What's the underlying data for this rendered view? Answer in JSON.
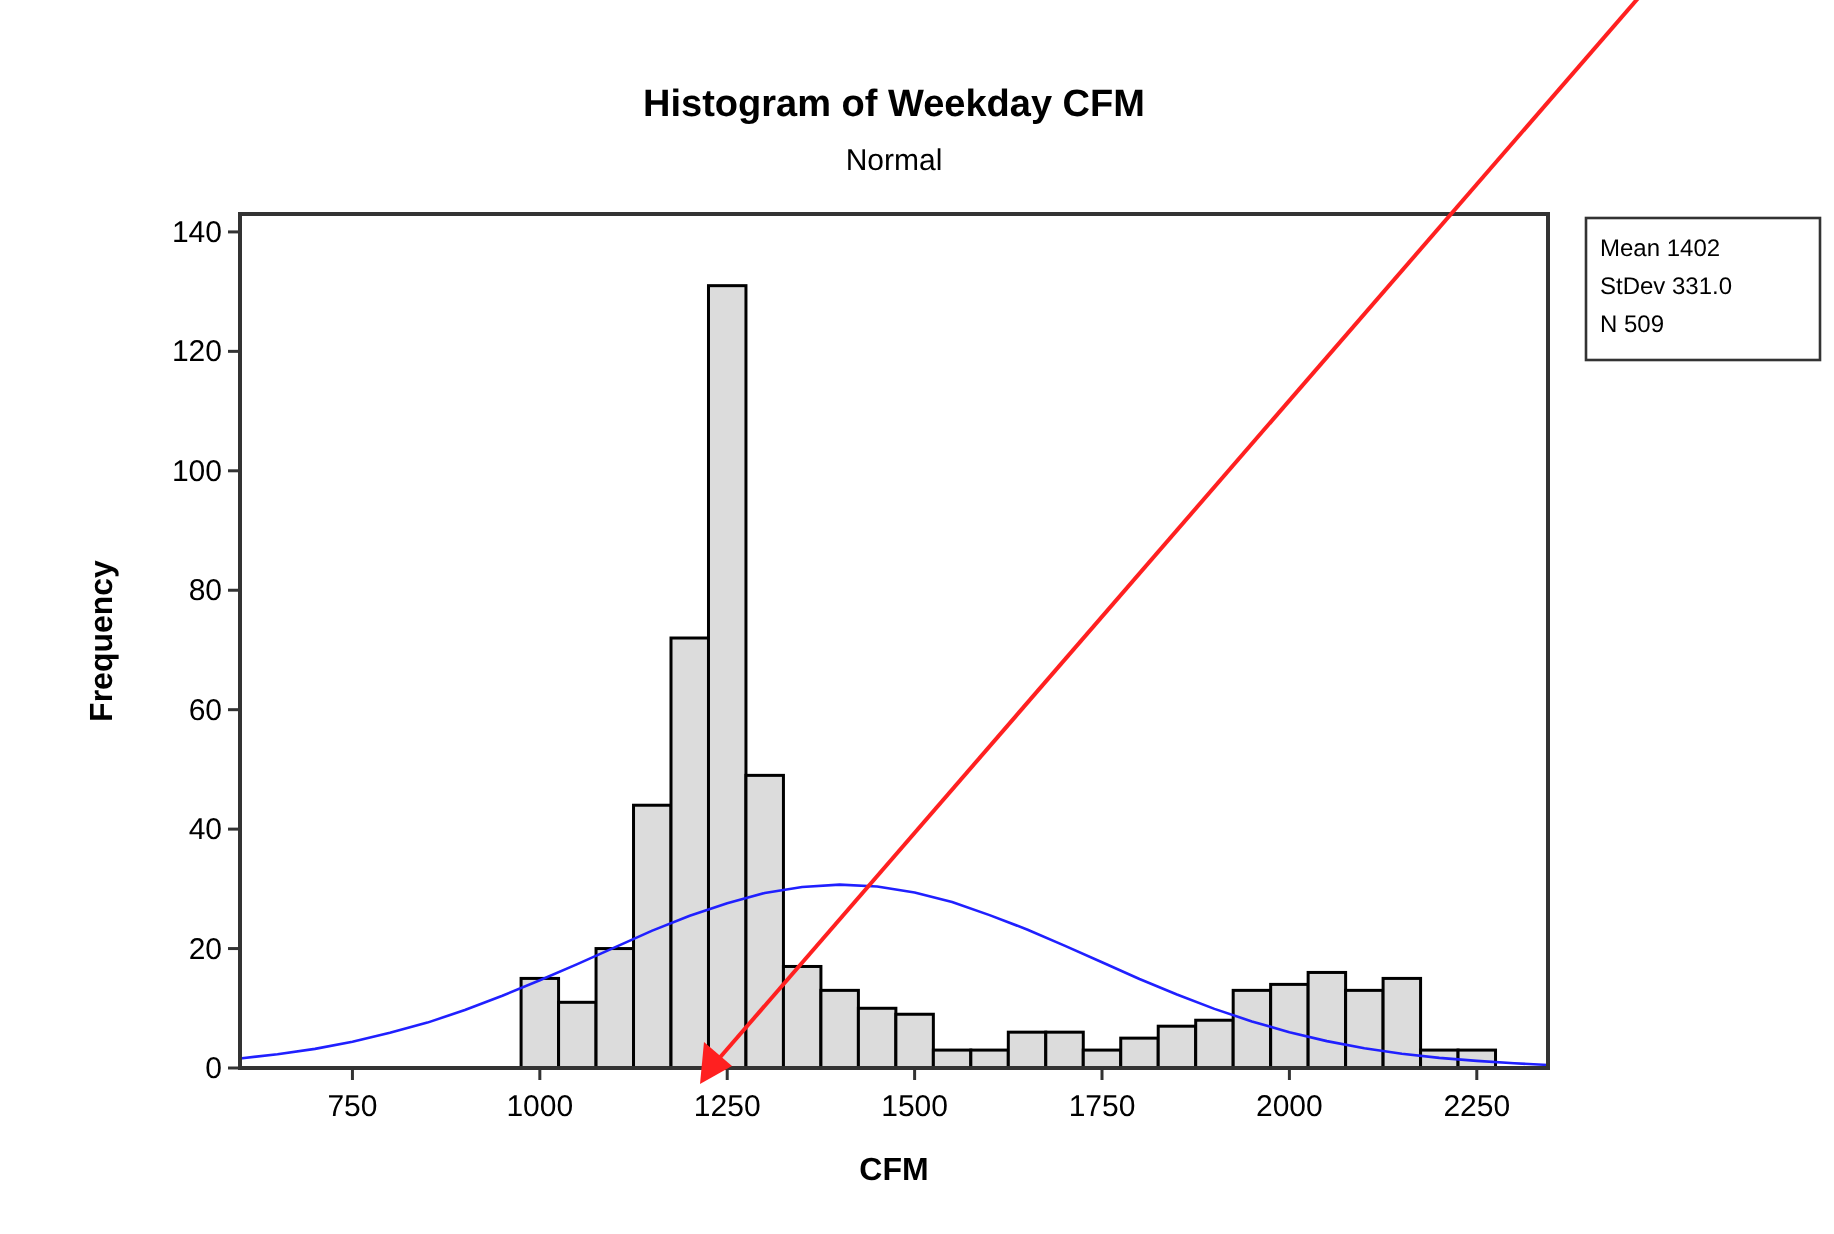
{
  "chart_data": {
    "type": "histogram",
    "title": "Histogram of Weekday CFM",
    "subtitle": "Normal",
    "xlabel": "CFM",
    "ylabel": "Frequency",
    "bins": [
      975,
      1025,
      1075,
      1125,
      1175,
      1225,
      1275,
      1325,
      1375,
      1425,
      1475,
      1525,
      1575,
      1625,
      1675,
      1725,
      1775,
      1825,
      1875,
      1925,
      1975,
      2025,
      2075,
      2125,
      2175,
      2225,
      2275
    ],
    "values": [
      15,
      11,
      20,
      44,
      72,
      131,
      49,
      17,
      13,
      10,
      9,
      3,
      3,
      6,
      6,
      3,
      5,
      7,
      8,
      13,
      14,
      16,
      13,
      15,
      3,
      3
    ],
    "color": "#dcdcdc",
    "series": [
      {
        "type": "line",
        "color": "#2020ff",
        "x": [
          600,
          650,
          700,
          750,
          800,
          850,
          900,
          950,
          1000,
          1050,
          1100,
          1150,
          1200,
          1250,
          1300,
          1350,
          1400,
          1450,
          1500,
          1550,
          1600,
          1650,
          1700,
          1750,
          1800,
          1850,
          1900,
          1950,
          2000,
          2050,
          2100,
          2150,
          2200,
          2250,
          2300,
          2345
        ],
        "values": [
          1.6,
          2.3,
          3.2,
          4.4,
          5.9,
          7.6,
          9.7,
          12.1,
          14.7,
          17.4,
          20.2,
          23.0,
          25.5,
          27.6,
          29.3,
          30.3,
          30.7,
          30.4,
          29.4,
          27.8,
          25.6,
          23.2,
          20.5,
          17.7,
          14.9,
          12.3,
          9.9,
          7.8,
          6.0,
          4.5,
          3.3,
          2.4,
          1.7,
          1.2,
          0.8,
          0.5
        ]
      }
    ],
    "xlim": [
      600,
      2345
    ],
    "xticks": [
      750,
      1000,
      1250,
      1500,
      1750,
      2000,
      2250
    ],
    "ylim": [
      0,
      143
    ],
    "yticks": [
      0,
      20,
      40,
      60,
      80,
      100,
      120,
      140
    ],
    "grid": false,
    "annotations": [
      "Mean 1402",
      "StDev 331.0",
      "N 509"
    ]
  }
}
